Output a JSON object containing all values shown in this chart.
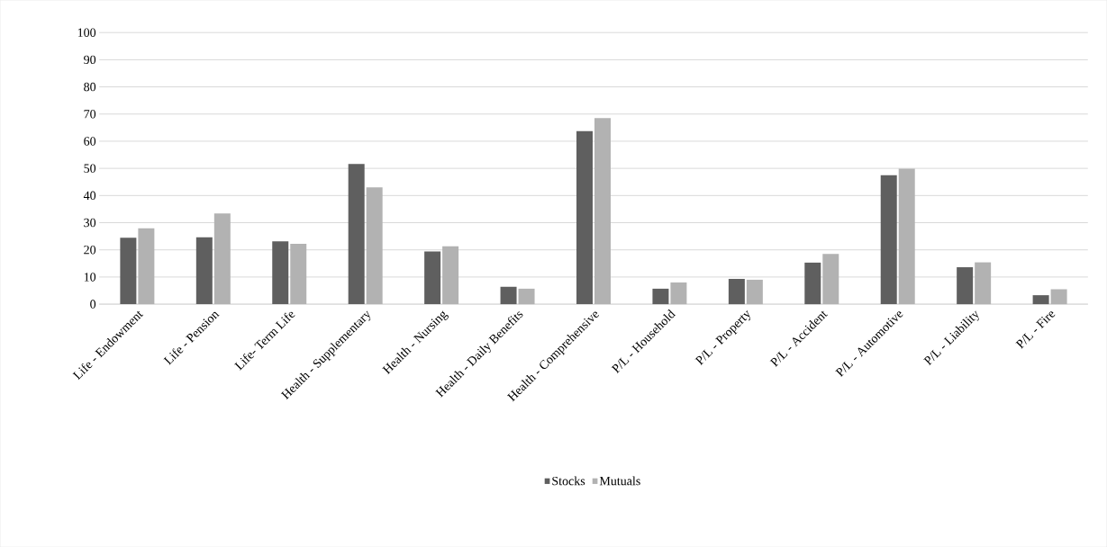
{
  "chart_data": {
    "type": "bar",
    "categories": [
      "Life - Endowment",
      "Life - Pension",
      "Life- Term Life",
      "Health - Supplementary",
      "Health - Nursing",
      "Health - Daily Benefits",
      "Health - Comprehensive",
      "P/L - Household",
      "P/L - Property",
      "P/L - Accident",
      "P/L - Automotive",
      "P/L - Liability",
      "P/L - Fire"
    ],
    "series": [
      {
        "name": "Stocks",
        "color": "#5f5f5f",
        "values": [
          24.5,
          24.6,
          23.1,
          51.6,
          19.4,
          6.4,
          63.7,
          5.7,
          9.3,
          15.3,
          47.5,
          13.6,
          3.3
        ]
      },
      {
        "name": "Mutuals",
        "color": "#b2b2b2",
        "values": [
          27.9,
          33.4,
          22.2,
          43.0,
          21.3,
          5.7,
          68.5,
          8.0,
          9.0,
          18.5,
          49.9,
          15.4,
          5.5
        ]
      }
    ],
    "ylim": [
      0,
      100
    ],
    "yticks": [
      0,
      10,
      20,
      30,
      40,
      50,
      60,
      70,
      80,
      90,
      100
    ],
    "grid": "y",
    "legend": "bottom"
  }
}
